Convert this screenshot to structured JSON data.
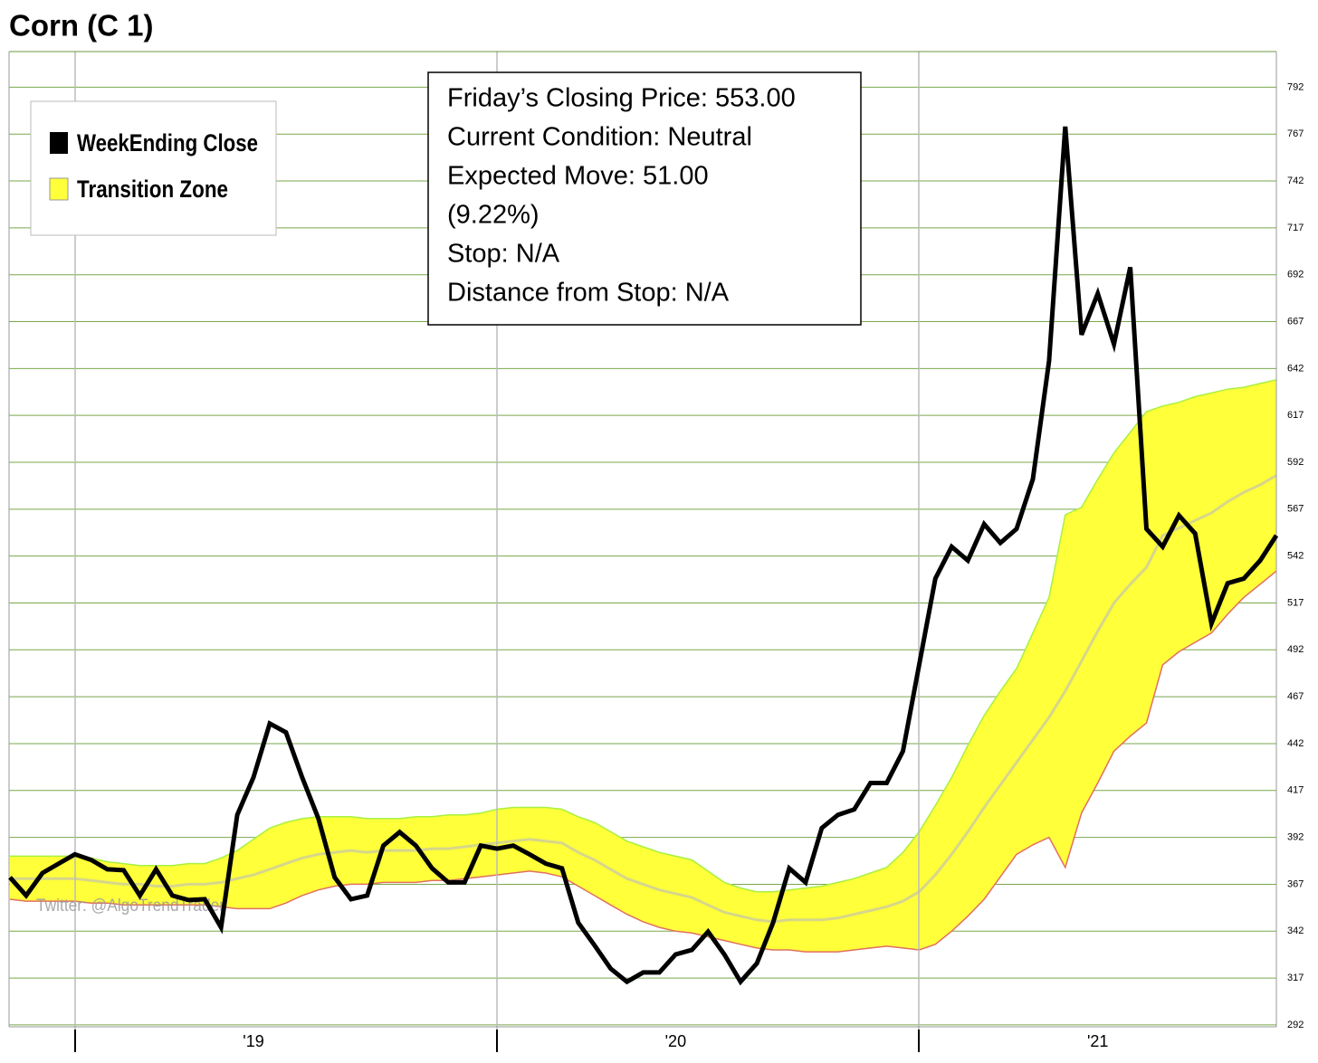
{
  "chart_data": {
    "type": "line",
    "title": "Corn (C 1)",
    "categories": [
      null,
      null,
      null,
      null,
      null,
      null,
      null,
      null,
      null,
      null,
      null,
      null,
      null,
      null,
      null,
      "'19",
      null,
      null,
      null,
      null,
      null,
      null,
      null,
      null,
      null,
      null,
      null,
      null,
      null,
      null,
      null,
      null,
      null,
      null,
      null,
      null,
      null,
      null,
      null,
      null,
      null,
      "'20",
      null,
      null,
      null,
      null,
      null,
      null,
      null,
      null,
      null,
      null,
      null,
      null,
      null,
      null,
      null,
      null,
      null,
      null,
      null,
      null,
      null,
      null,
      null,
      null,
      null,
      "'21",
      null,
      null,
      null,
      null,
      null,
      null,
      null,
      null,
      null,
      null,
      null
    ],
    "series": [
      {
        "name": "WeekEnding Close",
        "color": "#000000",
        "values": [
          370.7,
          361,
          373,
          378,
          383,
          380,
          375,
          374.5,
          361,
          375,
          361,
          358.6,
          359,
          344,
          404,
          424,
          452.7,
          448,
          424,
          402,
          370.7,
          359,
          361,
          387.6,
          394.8,
          387.6,
          375.5,
          368,
          368,
          387.6,
          386,
          387.6,
          383,
          378,
          375.5,
          346.5,
          334.5,
          322,
          315,
          320,
          320,
          329.6,
          332,
          341.7,
          329.6,
          315,
          324.8,
          346.5,
          375.5,
          368,
          397,
          404,
          406.9,
          421,
          421,
          438,
          484,
          530,
          547,
          539.6,
          559,
          549,
          556.5,
          583,
          646,
          771,
          660,
          682,
          655,
          696,
          556.5,
          547,
          563.7,
          554,
          506,
          527.5,
          530,
          539.6,
          553
        ]
      },
      {
        "name": "Transition Zone",
        "color": "#ffff3a",
        "upper_color": "#a8f040",
        "lower_color": "#e07060",
        "mid_color": "#d6d68a",
        "upper": [
          382,
          382,
          382,
          382,
          382,
          381,
          379,
          378,
          377,
          377,
          377,
          378,
          378,
          381,
          385,
          391,
          397,
          400,
          402,
          403,
          403,
          403,
          402,
          402,
          402,
          403,
          403,
          404,
          404,
          405,
          407,
          408,
          408,
          408,
          407,
          403,
          400,
          395,
          390,
          387,
          384,
          382,
          380,
          374,
          368,
          365,
          363,
          363,
          364,
          365,
          366,
          368,
          370,
          373,
          376,
          384,
          395,
          409,
          424,
          441,
          457,
          470,
          482,
          501,
          520,
          564,
          568,
          583,
          597,
          608,
          619,
          622,
          624,
          627,
          629,
          631,
          632,
          634,
          636
        ],
        "lower": [
          359,
          358,
          358,
          358,
          358,
          357,
          357,
          356,
          356,
          356,
          356,
          356,
          356,
          355,
          354,
          354,
          354,
          357,
          361,
          364,
          366,
          367,
          367,
          368,
          368,
          368,
          369,
          369,
          370,
          371,
          372,
          373,
          374,
          373,
          371,
          366,
          361,
          356,
          351,
          347,
          344,
          342,
          341,
          339,
          337,
          335,
          333,
          332,
          332,
          331,
          331,
          331,
          332,
          333,
          334,
          333,
          332,
          335,
          342,
          350,
          359,
          371,
          383,
          388,
          392,
          376,
          405,
          421,
          438,
          446,
          453,
          484,
          491,
          496,
          501,
          511,
          520,
          527,
          534
        ],
        "mid": [
          370,
          370,
          370,
          370,
          370,
          369,
          368,
          367,
          367,
          366,
          366,
          367,
          367,
          368,
          370,
          372,
          375,
          378,
          381,
          383,
          384,
          385,
          384,
          385,
          385,
          385,
          386,
          386,
          387,
          388,
          389,
          390,
          391,
          390,
          389,
          384,
          380,
          375,
          370,
          367,
          364,
          362,
          360,
          356,
          352,
          350,
          348,
          347,
          348,
          348,
          348,
          349,
          351,
          353,
          355,
          358,
          363,
          372,
          383,
          395,
          408,
          420,
          432,
          444,
          456,
          470,
          486,
          502,
          517,
          527,
          536,
          553,
          557,
          561,
          565,
          571,
          576,
          580,
          585
        ]
      }
    ],
    "ylim": [
      291,
      811
    ],
    "yticks": [
      292,
      317,
      342,
      367,
      392,
      417,
      442,
      467,
      492,
      517,
      542,
      567,
      592,
      617,
      642,
      667,
      692,
      717,
      742,
      767,
      792
    ],
    "grid": true,
    "info_box": [
      "Friday’s Closing Price: 553.00",
      "Current Condition: Neutral",
      "Expected Move: 51.00",
      "(9.22%)",
      "Stop: N/A",
      "Distance from Stop: N/A"
    ],
    "watermark": "Twitter: @AlgoTrendTrader"
  }
}
